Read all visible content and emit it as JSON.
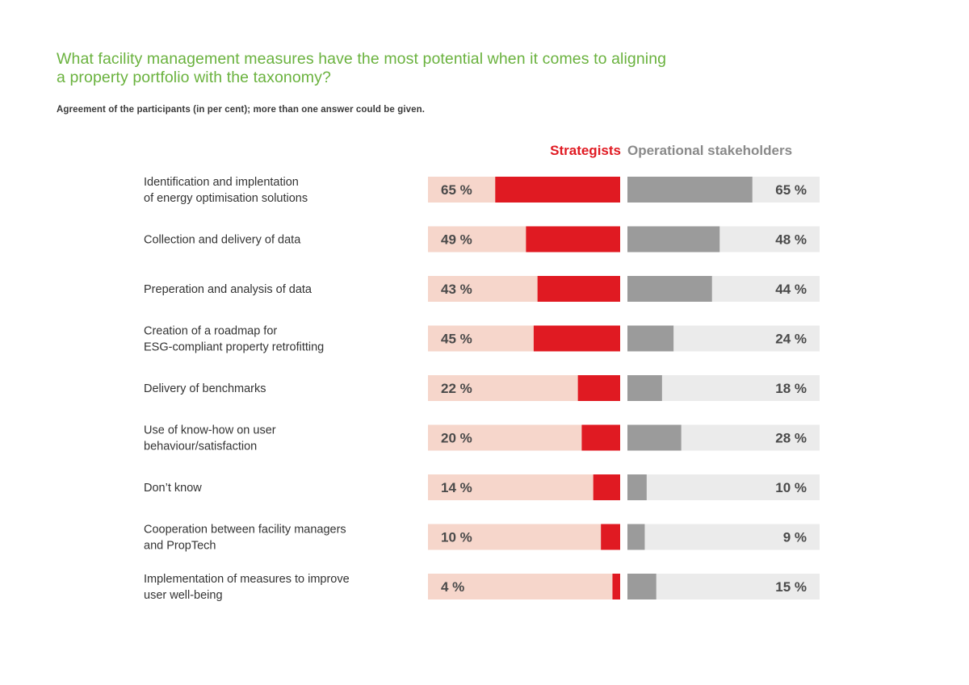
{
  "title": "What facility management measures have the most potential when it comes to aligning a property portfolio with the taxonomy?",
  "subtitle": "Agreement of the participants (in per cent); more than one answer could be given.",
  "colors": {
    "title": "#6ab23e",
    "strategists": "#e01a22",
    "strategists_track": "#f6d6cb",
    "operational": "#9b9b9b",
    "operational_track": "#ebebeb"
  },
  "chart_data": {
    "type": "bar",
    "orientation": "horizontal-diverging",
    "unit": "%",
    "ylim": [
      0,
      100
    ],
    "categories": [
      [
        "Identification and implentation",
        "of energy optimisation solutions"
      ],
      [
        "Collection and delivery of data"
      ],
      [
        "Preperation and analysis of data"
      ],
      [
        "Creation of a roadmap for",
        "ESG-compliant property retrofitting"
      ],
      [
        "Delivery of benchmarks"
      ],
      [
        "Use of know-how on user",
        "behaviour/satisfaction"
      ],
      [
        "Don’t know"
      ],
      [
        "Cooperation between facility managers",
        "and PropTech"
      ],
      [
        "Implementation of measures to improve",
        "user well-being"
      ]
    ],
    "series": [
      {
        "name": "Strategists",
        "values": [
          65,
          49,
          43,
          45,
          22,
          20,
          14,
          10,
          4
        ],
        "labels": [
          "65 %",
          "49 %",
          "43 %",
          "45 %",
          "22 %",
          "20 %",
          "14 %",
          "10 %",
          "4 %"
        ]
      },
      {
        "name": "Operational stakeholders",
        "values": [
          65,
          48,
          44,
          24,
          18,
          28,
          10,
          9,
          15
        ],
        "labels": [
          "65 %",
          "48 %",
          "44 %",
          "24 %",
          "18 %",
          "28 %",
          "10 %",
          "9 %",
          "15 %"
        ]
      }
    ]
  }
}
